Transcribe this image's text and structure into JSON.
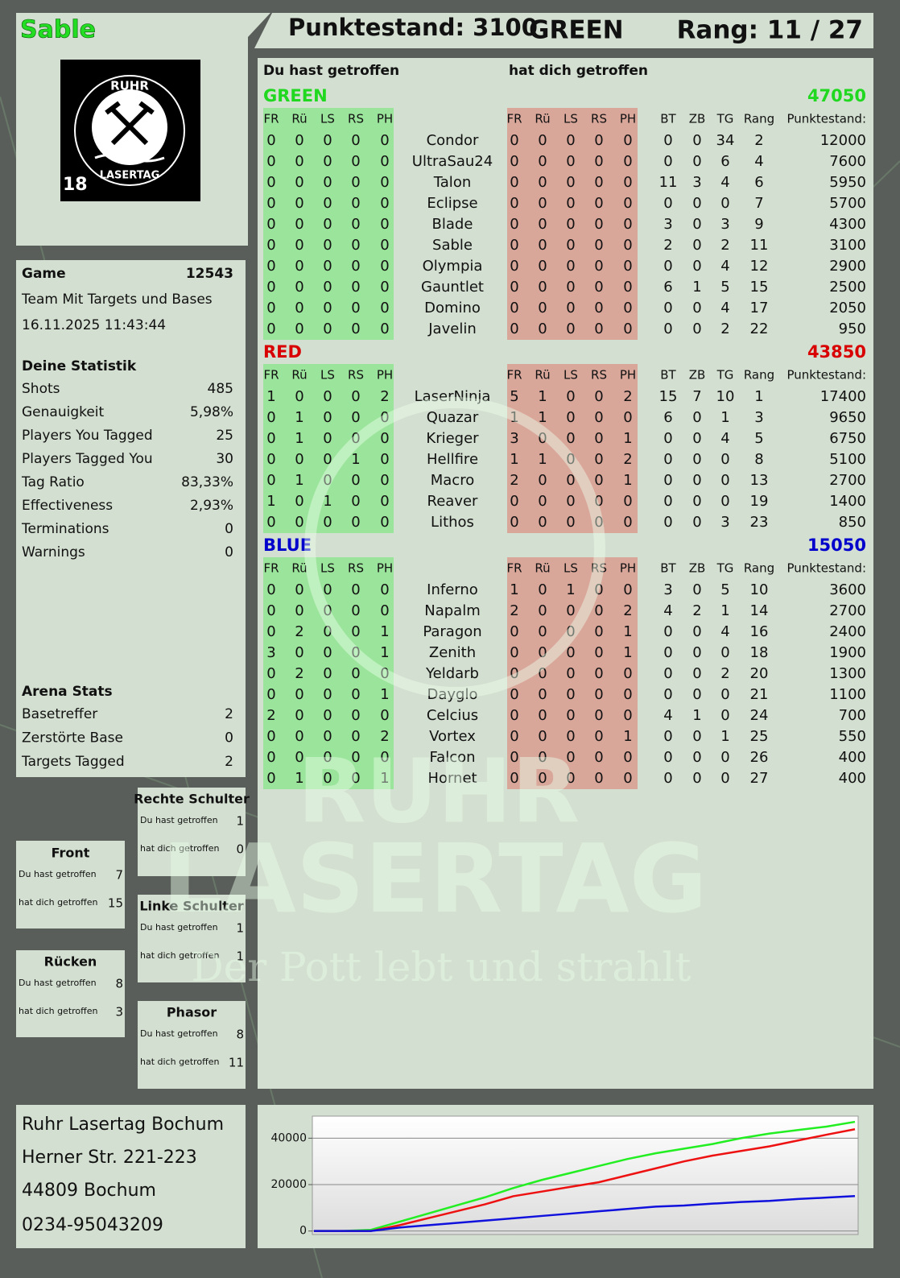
{
  "header": {
    "player": "Sable",
    "score": "Punktestand: 3100",
    "team": "GREEN",
    "rank": "Rang: 11 / 27"
  },
  "logo": {
    "top": "RUHR",
    "bottom": "LASERTAG",
    "age": "18"
  },
  "game": {
    "label": "Game",
    "id": "12543",
    "mode": "Team Mit Targets und Bases",
    "date": "16.11.2025 11:43:44"
  },
  "stats": {
    "title": "Deine Statistik",
    "rows": [
      [
        "Shots",
        "485"
      ],
      [
        "Genauigkeit",
        "5,98%"
      ],
      [
        "Players You Tagged",
        "25"
      ],
      [
        "Players Tagged You",
        "30"
      ],
      [
        "Tag Ratio",
        "83,33%"
      ],
      [
        "Effectiveness",
        "2,93%"
      ],
      [
        "Terminations",
        "0"
      ],
      [
        "Warnings",
        "0"
      ]
    ]
  },
  "arena": {
    "title": "Arena Stats",
    "rows": [
      [
        "Basetreffer",
        "2"
      ],
      [
        "Zerstörte Base",
        "0"
      ],
      [
        "Targets Tagged",
        "2"
      ]
    ]
  },
  "zone_labels": {
    "hit": "Du hast getroffen",
    "got": "hat dich getroffen"
  },
  "zones": [
    {
      "title": "Rechte Schulter",
      "hit": "1",
      "got": "0"
    },
    {
      "title": "Front",
      "hit": "7",
      "got": "15"
    },
    {
      "title": "Linke Schulter",
      "hit": "1",
      "got": "1"
    },
    {
      "title": "Rücken",
      "hit": "8",
      "got": "3"
    },
    {
      "title": "Phasor",
      "hit": "8",
      "got": "11"
    }
  ],
  "table": {
    "hit_title": "Du hast getroffen",
    "got_title": "hat dich getroffen",
    "columns": [
      "FR",
      "Rü",
      "LS",
      "RS",
      "PH",
      "BT",
      "ZB",
      "TG",
      "Rang",
      "Punktestand:"
    ],
    "teams": [
      {
        "name": "GREEN",
        "score": "47050",
        "color": "#1fd81f",
        "players": [
          [
            "Condor",
            [
              "0",
              "0",
              "0",
              "0",
              "0"
            ],
            [
              "0",
              "0",
              "0",
              "0",
              "0"
            ],
            [
              "0",
              "0",
              "34",
              "2",
              "12000"
            ]
          ],
          [
            "UltraSau24",
            [
              "0",
              "0",
              "0",
              "0",
              "0"
            ],
            [
              "0",
              "0",
              "0",
              "0",
              "0"
            ],
            [
              "0",
              "0",
              "6",
              "4",
              "7600"
            ]
          ],
          [
            "Talon",
            [
              "0",
              "0",
              "0",
              "0",
              "0"
            ],
            [
              "0",
              "0",
              "0",
              "0",
              "0"
            ],
            [
              "11",
              "3",
              "4",
              "6",
              "5950"
            ]
          ],
          [
            "Eclipse",
            [
              "0",
              "0",
              "0",
              "0",
              "0"
            ],
            [
              "0",
              "0",
              "0",
              "0",
              "0"
            ],
            [
              "0",
              "0",
              "0",
              "7",
              "5700"
            ]
          ],
          [
            "Blade",
            [
              "0",
              "0",
              "0",
              "0",
              "0"
            ],
            [
              "0",
              "0",
              "0",
              "0",
              "0"
            ],
            [
              "3",
              "0",
              "3",
              "9",
              "4300"
            ]
          ],
          [
            "Sable",
            [
              "0",
              "0",
              "0",
              "0",
              "0"
            ],
            [
              "0",
              "0",
              "0",
              "0",
              "0"
            ],
            [
              "2",
              "0",
              "2",
              "11",
              "3100"
            ]
          ],
          [
            "Olympia",
            [
              "0",
              "0",
              "0",
              "0",
              "0"
            ],
            [
              "0",
              "0",
              "0",
              "0",
              "0"
            ],
            [
              "0",
              "0",
              "4",
              "12",
              "2900"
            ]
          ],
          [
            "Gauntlet",
            [
              "0",
              "0",
              "0",
              "0",
              "0"
            ],
            [
              "0",
              "0",
              "0",
              "0",
              "0"
            ],
            [
              "6",
              "1",
              "5",
              "15",
              "2500"
            ]
          ],
          [
            "Domino",
            [
              "0",
              "0",
              "0",
              "0",
              "0"
            ],
            [
              "0",
              "0",
              "0",
              "0",
              "0"
            ],
            [
              "0",
              "0",
              "4",
              "17",
              "2050"
            ]
          ],
          [
            "Javelin",
            [
              "0",
              "0",
              "0",
              "0",
              "0"
            ],
            [
              "0",
              "0",
              "0",
              "0",
              "0"
            ],
            [
              "0",
              "0",
              "2",
              "22",
              "950"
            ]
          ]
        ]
      },
      {
        "name": "RED",
        "score": "43850",
        "color": "#d80000",
        "players": [
          [
            "LaserNinja",
            [
              "1",
              "0",
              "0",
              "0",
              "2"
            ],
            [
              "5",
              "1",
              "0",
              "0",
              "2"
            ],
            [
              "15",
              "7",
              "10",
              "1",
              "17400"
            ]
          ],
          [
            "Quazar",
            [
              "0",
              "1",
              "0",
              "0",
              "0"
            ],
            [
              "1",
              "1",
              "0",
              "0",
              "0"
            ],
            [
              "6",
              "0",
              "1",
              "3",
              "9650"
            ]
          ],
          [
            "Krieger",
            [
              "0",
              "1",
              "0",
              "0",
              "0"
            ],
            [
              "3",
              "0",
              "0",
              "0",
              "1"
            ],
            [
              "0",
              "0",
              "4",
              "5",
              "6750"
            ]
          ],
          [
            "Hellfire",
            [
              "0",
              "0",
              "0",
              "1",
              "0"
            ],
            [
              "1",
              "1",
              "0",
              "0",
              "2"
            ],
            [
              "0",
              "0",
              "0",
              "8",
              "5100"
            ]
          ],
          [
            "Macro",
            [
              "0",
              "1",
              "0",
              "0",
              "0"
            ],
            [
              "2",
              "0",
              "0",
              "0",
              "1"
            ],
            [
              "0",
              "0",
              "0",
              "13",
              "2700"
            ]
          ],
          [
            "Reaver",
            [
              "1",
              "0",
              "1",
              "0",
              "0"
            ],
            [
              "0",
              "0",
              "0",
              "0",
              "0"
            ],
            [
              "0",
              "0",
              "0",
              "19",
              "1400"
            ]
          ],
          [
            "Lithos",
            [
              "0",
              "0",
              "0",
              "0",
              "0"
            ],
            [
              "0",
              "0",
              "0",
              "0",
              "0"
            ],
            [
              "0",
              "0",
              "3",
              "23",
              "850"
            ]
          ]
        ]
      },
      {
        "name": "BLUE",
        "score": "15050",
        "color": "#0000cc",
        "players": [
          [
            "Inferno",
            [
              "0",
              "0",
              "0",
              "0",
              "0"
            ],
            [
              "1",
              "0",
              "1",
              "0",
              "0"
            ],
            [
              "3",
              "0",
              "5",
              "10",
              "3600"
            ]
          ],
          [
            "Napalm",
            [
              "0",
              "0",
              "0",
              "0",
              "0"
            ],
            [
              "2",
              "0",
              "0",
              "0",
              "2"
            ],
            [
              "4",
              "2",
              "1",
              "14",
              "2700"
            ]
          ],
          [
            "Paragon",
            [
              "0",
              "2",
              "0",
              "0",
              "1"
            ],
            [
              "0",
              "0",
              "0",
              "0",
              "1"
            ],
            [
              "0",
              "0",
              "4",
              "16",
              "2400"
            ]
          ],
          [
            "Zenith",
            [
              "3",
              "0",
              "0",
              "0",
              "1"
            ],
            [
              "0",
              "0",
              "0",
              "0",
              "1"
            ],
            [
              "0",
              "0",
              "0",
              "18",
              "1900"
            ]
          ],
          [
            "Yeldarb",
            [
              "0",
              "2",
              "0",
              "0",
              "0"
            ],
            [
              "0",
              "0",
              "0",
              "0",
              "0"
            ],
            [
              "0",
              "0",
              "2",
              "20",
              "1300"
            ]
          ],
          [
            "Dayglo",
            [
              "0",
              "0",
              "0",
              "0",
              "1"
            ],
            [
              "0",
              "0",
              "0",
              "0",
              "0"
            ],
            [
              "0",
              "0",
              "0",
              "21",
              "1100"
            ]
          ],
          [
            "Celcius",
            [
              "2",
              "0",
              "0",
              "0",
              "0"
            ],
            [
              "0",
              "0",
              "0",
              "0",
              "0"
            ],
            [
              "4",
              "1",
              "0",
              "24",
              "700"
            ]
          ],
          [
            "Vortex",
            [
              "0",
              "0",
              "0",
              "0",
              "2"
            ],
            [
              "0",
              "0",
              "0",
              "0",
              "1"
            ],
            [
              "0",
              "0",
              "1",
              "25",
              "550"
            ]
          ],
          [
            "Falcon",
            [
              "0",
              "0",
              "0",
              "0",
              "0"
            ],
            [
              "0",
              "0",
              "0",
              "0",
              "0"
            ],
            [
              "0",
              "0",
              "0",
              "26",
              "400"
            ]
          ],
          [
            "Hornet",
            [
              "0",
              "1",
              "0",
              "0",
              "1"
            ],
            [
              "0",
              "0",
              "0",
              "0",
              "0"
            ],
            [
              "0",
              "0",
              "0",
              "27",
              "400"
            ]
          ]
        ]
      }
    ]
  },
  "address": [
    "Ruhr Lasertag Bochum",
    "Herner Str. 221-223",
    "44809 Bochum",
    "0234-95043209"
  ],
  "watermark": {
    "line1": "RUHR",
    "line2": "LASERTAG",
    "slogan": "Der Pott lebt und strahlt"
  },
  "chart_data": {
    "type": "line",
    "ylim": [
      -1500,
      49500
    ],
    "yticks": [
      0,
      20000,
      40000
    ],
    "grid": true,
    "series": [
      {
        "color": "#22ee22",
        "values": [
          0,
          0,
          500,
          4000,
          7500,
          11000,
          14500,
          18500,
          22000,
          25000,
          28000,
          31000,
          33500,
          35500,
          37500,
          40000,
          42000,
          43500,
          45000,
          47050
        ]
      },
      {
        "color": "#ee1111",
        "values": [
          0,
          0,
          0,
          2500,
          5500,
          8500,
          11500,
          15000,
          17000,
          19000,
          21000,
          24000,
          27000,
          30000,
          32500,
          34500,
          36500,
          39000,
          41500,
          43850
        ]
      },
      {
        "color": "#1111dd",
        "values": [
          0,
          0,
          0,
          1500,
          2500,
          3500,
          4500,
          5500,
          6500,
          7500,
          8500,
          9500,
          10500,
          11000,
          11800,
          12500,
          13000,
          13800,
          14400,
          15050
        ]
      }
    ]
  }
}
